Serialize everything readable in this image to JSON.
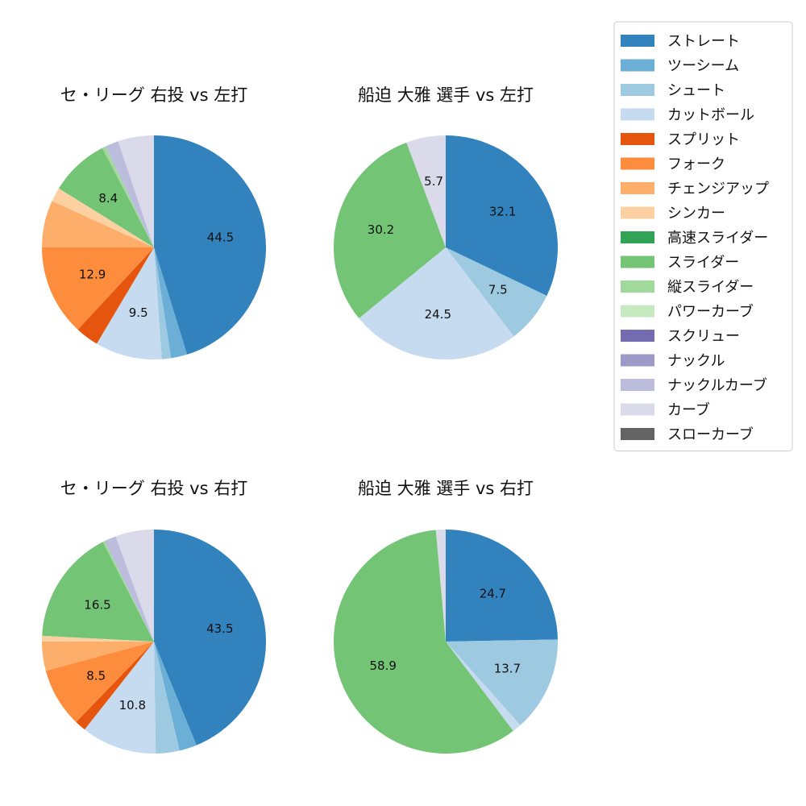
{
  "legend": {
    "items": [
      {
        "label": "ストレート",
        "color": "#3182bd"
      },
      {
        "label": "ツーシーム",
        "color": "#6baed6"
      },
      {
        "label": "シュート",
        "color": "#9ecae1"
      },
      {
        "label": "カットボール",
        "color": "#c6dbef"
      },
      {
        "label": "スプリット",
        "color": "#e6550d"
      },
      {
        "label": "フォーク",
        "color": "#fd8d3c"
      },
      {
        "label": "チェンジアップ",
        "color": "#fdae6b"
      },
      {
        "label": "シンカー",
        "color": "#fdd0a2"
      },
      {
        "label": "高速スライダー",
        "color": "#31a354"
      },
      {
        "label": "スライダー",
        "color": "#74c476"
      },
      {
        "label": "縦スライダー",
        "color": "#a1d99b"
      },
      {
        "label": "パワーカーブ",
        "color": "#c7e9c0"
      },
      {
        "label": "スクリュー",
        "color": "#756bb1"
      },
      {
        "label": "ナックル",
        "color": "#9e9ac8"
      },
      {
        "label": "ナックルカーブ",
        "color": "#bcbddc"
      },
      {
        "label": "カーブ",
        "color": "#dadaeb"
      },
      {
        "label": "スローカーブ",
        "color": "#636363"
      }
    ]
  },
  "chart_data": [
    {
      "type": "pie",
      "title": "セ・リーグ 右投 vs 左打",
      "slices": [
        {
          "category": "ストレート",
          "value": 44.5,
          "label": "44.5"
        },
        {
          "category": "ツーシーム",
          "value": 2.3,
          "label": ""
        },
        {
          "category": "シュート",
          "value": 1.3,
          "label": ""
        },
        {
          "category": "カットボール",
          "value": 9.5,
          "label": "9.5"
        },
        {
          "category": "スプリット",
          "value": 3.3,
          "label": ""
        },
        {
          "category": "フォーク",
          "value": 12.9,
          "label": "12.9"
        },
        {
          "category": "チェンジアップ",
          "value": 6.7,
          "label": ""
        },
        {
          "category": "シンカー",
          "value": 2.0,
          "label": ""
        },
        {
          "category": "スライダー",
          "value": 8.4,
          "label": "8.4"
        },
        {
          "category": "縦スライダー",
          "value": 0.5,
          "label": ""
        },
        {
          "category": "ナックルカーブ",
          "value": 1.9,
          "label": ""
        },
        {
          "category": "カーブ",
          "value": 5.1,
          "label": ""
        }
      ]
    },
    {
      "type": "pie",
      "title": "船迫 大雅 選手 vs 左打",
      "slices": [
        {
          "category": "ストレート",
          "value": 32.1,
          "label": "32.1"
        },
        {
          "category": "シュート",
          "value": 7.5,
          "label": "7.5"
        },
        {
          "category": "カットボール",
          "value": 24.5,
          "label": "24.5"
        },
        {
          "category": "スライダー",
          "value": 30.2,
          "label": "30.2"
        },
        {
          "category": "カーブ",
          "value": 5.7,
          "label": "5.7"
        }
      ]
    },
    {
      "type": "pie",
      "title": "セ・リーグ 右投 vs 右打",
      "slices": [
        {
          "category": "ストレート",
          "value": 43.5,
          "label": "43.5"
        },
        {
          "category": "ツーシーム",
          "value": 2.5,
          "label": ""
        },
        {
          "category": "シュート",
          "value": 3.4,
          "label": ""
        },
        {
          "category": "カットボール",
          "value": 10.8,
          "label": "10.8"
        },
        {
          "category": "スプリット",
          "value": 1.6,
          "label": ""
        },
        {
          "category": "フォーク",
          "value": 8.5,
          "label": "8.5"
        },
        {
          "category": "チェンジアップ",
          "value": 4.2,
          "label": ""
        },
        {
          "category": "シンカー",
          "value": 0.8,
          "label": ""
        },
        {
          "category": "スライダー",
          "value": 16.5,
          "label": "16.5"
        },
        {
          "category": "縦スライダー",
          "value": 0.3,
          "label": ""
        },
        {
          "category": "ナックルカーブ",
          "value": 1.7,
          "label": ""
        },
        {
          "category": "カーブ",
          "value": 5.5,
          "label": ""
        }
      ]
    },
    {
      "type": "pie",
      "title": "船迫 大雅 選手 vs 右打",
      "slices": [
        {
          "category": "ストレート",
          "value": 24.7,
          "label": "24.7"
        },
        {
          "category": "シュート",
          "value": 13.7,
          "label": "13.7"
        },
        {
          "category": "カットボール",
          "value": 1.3,
          "label": ""
        },
        {
          "category": "スライダー",
          "value": 58.9,
          "label": "58.9"
        },
        {
          "category": "カーブ",
          "value": 1.4,
          "label": ""
        }
      ]
    }
  ]
}
